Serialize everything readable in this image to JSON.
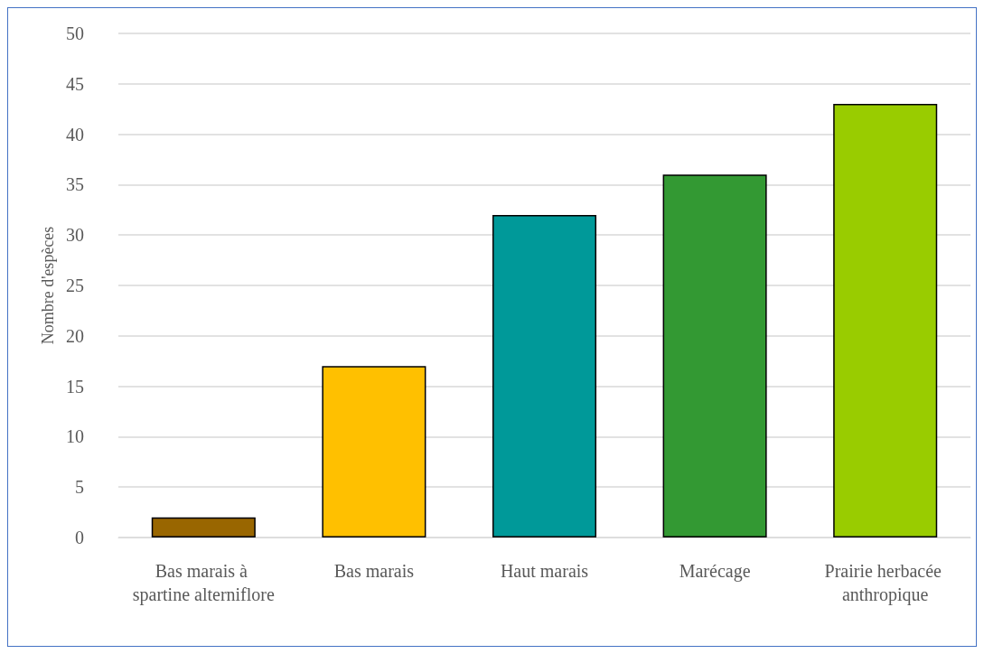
{
  "chart_data": {
    "type": "bar",
    "ylabel": "Nombre d'espèces",
    "categories": [
      "Bas marais à spartine alterniflore",
      "Bas marais",
      "Haut marais",
      "Marécage",
      "Prairie herbacée anthropique"
    ],
    "values": [
      2,
      17,
      32,
      36,
      43
    ],
    "colors": [
      "#996600",
      "#ffc000",
      "#009999",
      "#339933",
      "#99cc00"
    ],
    "ylim": [
      0,
      50
    ],
    "yticks": [
      0,
      5,
      10,
      15,
      20,
      25,
      30,
      35,
      40,
      45,
      50
    ],
    "grid": "y"
  }
}
